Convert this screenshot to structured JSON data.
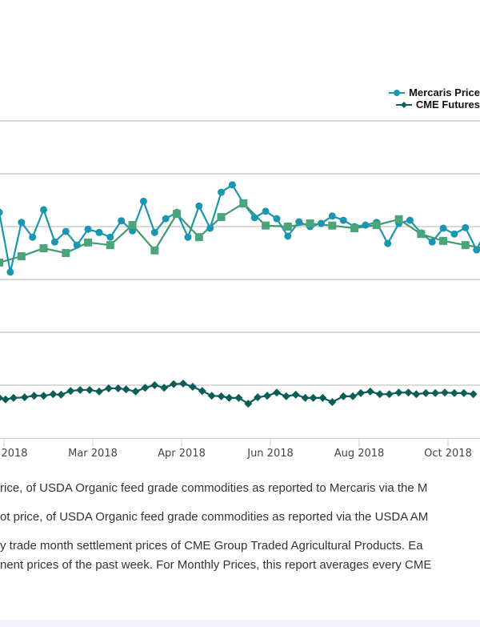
{
  "chart_data": {
    "type": "line",
    "title": "",
    "xlabel": "",
    "ylabel": "",
    "y_tick_labels_visible": false,
    "ylim": [
      0,
      6
    ],
    "grid": true,
    "legend_placement": "top-right",
    "x_tick_labels": [
      "2018",
      "Mar 2018",
      "Apr 2018",
      "Jun 2018",
      "Aug 2018",
      "Oct 2018"
    ],
    "x_tick_dates": [
      "2018-01-08",
      "2018-03-05",
      "2018-04-30",
      "2018-06-25",
      "2018-08-20",
      "2018-10-15"
    ],
    "series": [
      {
        "name": "Mercaris Price",
        "color": "#1996b1",
        "marker": "circle",
        "x": [
          "2018-01-05",
          "2018-01-12",
          "2018-01-19",
          "2018-01-26",
          "2018-02-02",
          "2018-02-09",
          "2018-02-16",
          "2018-02-23",
          "2018-03-02",
          "2018-03-09",
          "2018-03-16",
          "2018-03-23",
          "2018-03-30",
          "2018-04-06",
          "2018-04-13",
          "2018-04-20",
          "2018-04-27",
          "2018-05-04",
          "2018-05-11",
          "2018-05-18",
          "2018-05-25",
          "2018-06-01",
          "2018-06-08",
          "2018-06-15",
          "2018-06-22",
          "2018-06-29",
          "2018-07-06",
          "2018-07-13",
          "2018-07-20",
          "2018-07-27",
          "2018-08-03",
          "2018-08-10",
          "2018-08-17",
          "2018-08-24",
          "2018-08-31",
          "2018-09-07",
          "2018-09-14",
          "2018-09-21",
          "2018-09-28",
          "2018-10-05",
          "2018-10-12",
          "2018-10-19",
          "2018-10-26",
          "2018-11-02",
          "2018-11-09",
          "2018-11-16"
        ],
        "values": [
          4.27,
          3.14,
          4.08,
          3.8,
          4.32,
          3.71,
          3.91,
          3.65,
          3.95,
          3.89,
          3.8,
          4.11,
          3.92,
          4.48,
          3.89,
          4.15,
          4.27,
          3.8,
          4.39,
          3.97,
          4.65,
          4.79,
          4.44,
          4.17,
          4.29,
          4.15,
          3.82,
          4.09,
          4.0,
          4.06,
          4.2,
          4.12,
          4.0,
          4.03,
          4.08,
          3.68,
          4.06,
          4.12,
          3.88,
          3.71,
          3.97,
          3.86,
          3.98,
          3.56,
          3.98,
          3.82
        ]
      },
      {
        "color": "#3f9a6c",
        "marker": "square",
        "x": [
          "2018-01-05",
          "2018-01-19",
          "2018-02-02",
          "2018-02-16",
          "2018-03-02",
          "2018-03-16",
          "2018-03-30",
          "2018-04-13",
          "2018-04-27",
          "2018-05-11",
          "2018-05-25",
          "2018-06-08",
          "2018-06-22",
          "2018-07-06",
          "2018-07-20",
          "2018-08-03",
          "2018-08-17",
          "2018-08-31",
          "2018-09-14",
          "2018-09-28",
          "2018-10-12",
          "2018-10-26",
          "2018-11-09"
        ],
        "values": [
          3.32,
          3.44,
          3.59,
          3.5,
          3.7,
          3.65,
          4.03,
          3.55,
          4.24,
          3.8,
          4.18,
          4.44,
          4.02,
          4.0,
          4.06,
          4.02,
          3.97,
          4.03,
          4.14,
          3.86,
          3.73,
          3.65,
          3.58
        ]
      },
      {
        "name": "CME Futures",
        "color": "#0b5e57",
        "marker": "diamond",
        "x": [
          "2018-01-05",
          "2018-01-09",
          "2018-01-14",
          "2018-01-21",
          "2018-01-27",
          "2018-02-02",
          "2018-02-08",
          "2018-02-13",
          "2018-02-19",
          "2018-02-25",
          "2018-03-03",
          "2018-03-09",
          "2018-03-15",
          "2018-03-21",
          "2018-03-26",
          "2018-04-01",
          "2018-04-07",
          "2018-04-13",
          "2018-04-19",
          "2018-04-25",
          "2018-05-01",
          "2018-05-07",
          "2018-05-13",
          "2018-05-19",
          "2018-05-25",
          "2018-05-30",
          "2018-06-05",
          "2018-06-11",
          "2018-06-17",
          "2018-06-23",
          "2018-06-29",
          "2018-07-05",
          "2018-07-11",
          "2018-07-17",
          "2018-07-22",
          "2018-07-28",
          "2018-08-03",
          "2018-08-10",
          "2018-08-16",
          "2018-08-21",
          "2018-08-27",
          "2018-09-02",
          "2018-09-08",
          "2018-09-14",
          "2018-09-20",
          "2018-09-25",
          "2018-10-01",
          "2018-10-07",
          "2018-10-13",
          "2018-10-19",
          "2018-10-25",
          "2018-10-31"
        ],
        "values": [
          0.76,
          0.73,
          0.76,
          0.77,
          0.8,
          0.8,
          0.83,
          0.82,
          0.89,
          0.91,
          0.91,
          0.88,
          0.94,
          0.94,
          0.92,
          0.88,
          0.95,
          1.0,
          0.95,
          1.02,
          1.03,
          0.97,
          0.89,
          0.8,
          0.79,
          0.76,
          0.76,
          0.65,
          0.77,
          0.8,
          0.86,
          0.79,
          0.82,
          0.76,
          0.76,
          0.76,
          0.68,
          0.79,
          0.79,
          0.85,
          0.88,
          0.83,
          0.83,
          0.86,
          0.86,
          0.83,
          0.85,
          0.85,
          0.86,
          0.85,
          0.85,
          0.83
        ]
      }
    ]
  },
  "legend": {
    "mercaris_label": "Mercaris Price",
    "cme_label": "CME Futures"
  },
  "description": {
    "line1": "rice, of USDA Organic feed grade commodities as reported to Mercaris via the M",
    "line2": "ot price, of USDA Organic feed grade commodities as reported via the USDA AM",
    "line3": "y trade month settlement prices of CME Group Traded Agricultural Products. Ea",
    "line4": "nent prices of the past week. For Monthly Prices, this report averages every CME"
  }
}
